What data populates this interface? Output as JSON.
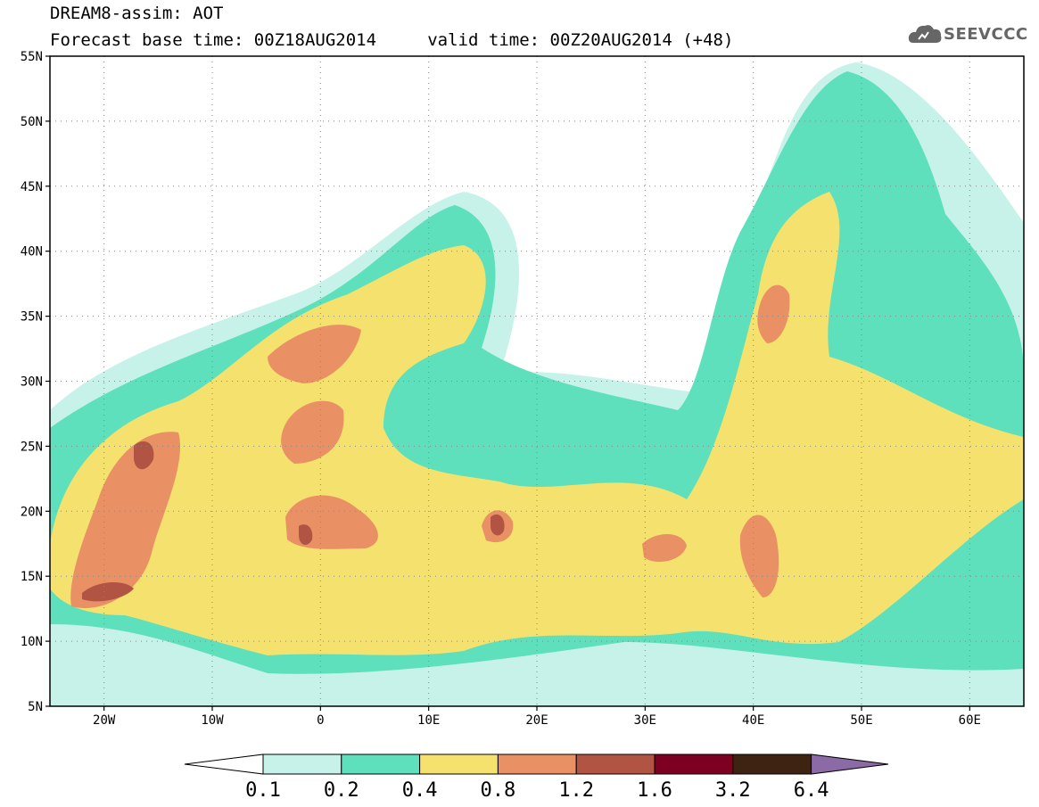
{
  "title": {
    "line1": "DREAM8-assim: AOT",
    "line2": "Forecast base time: 00Z18AUG2014     valid time: 00Z20AUG2014 (+48)"
  },
  "logo": {
    "text": "SEEVCCC",
    "icon": "cloud-icon"
  },
  "map": {
    "lon_range": [
      -25,
      65
    ],
    "lat_range": [
      5,
      55
    ],
    "lat_ticks": [
      "55N",
      "50N",
      "45N",
      "40N",
      "35N",
      "30N",
      "25N",
      "20N",
      "15N",
      "10N",
      "5N"
    ],
    "lon_ticks": [
      "20W",
      "10W",
      "0",
      "10E",
      "20E",
      "30E",
      "40E",
      "50E",
      "60E"
    ],
    "grid": "dotted"
  },
  "colorbar": {
    "labels": [
      "0.1",
      "0.2",
      "0.4",
      "0.8",
      "1.2",
      "1.6",
      "3.2",
      "6.4"
    ],
    "colors": [
      "#ffffff",
      "#c6f2ea",
      "#5fe0bc",
      "#f5e26e",
      "#ea9065",
      "#b15444",
      "#7d0022",
      "#3e2312",
      "#8c6aa6"
    ]
  }
}
